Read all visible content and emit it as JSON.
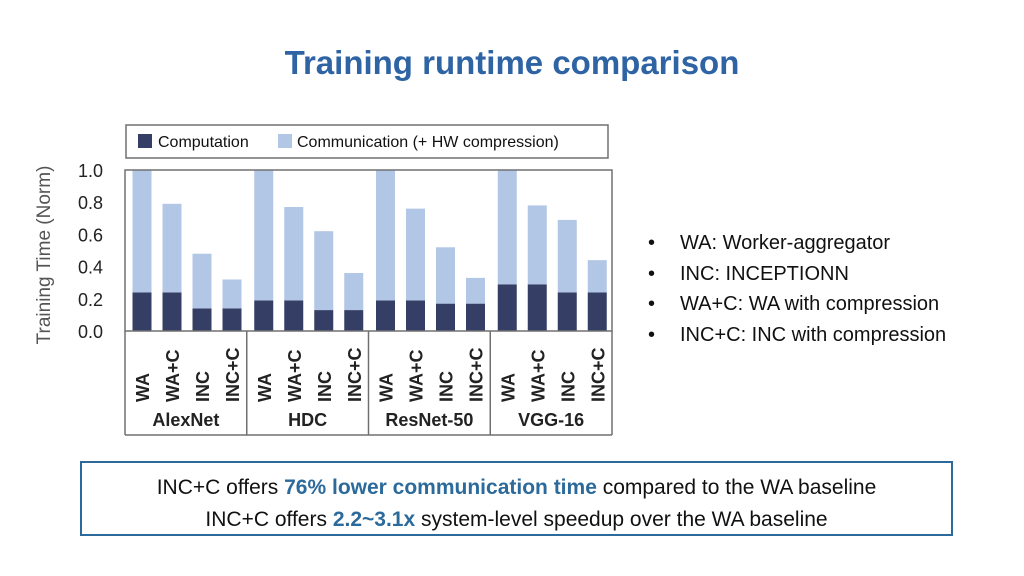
{
  "slide": {
    "title": "Training runtime comparison"
  },
  "bullets": [
    "WA: Worker-aggregator",
    "INC: INCEPTIONN",
    "WA+C: WA with compression",
    "INC+C: INC with compression"
  ],
  "summary": {
    "line1": {
      "pre": "INC+C offers ",
      "highlight": "76% lower communication time",
      "post": " compared to the WA baseline"
    },
    "line2": {
      "pre": "INC+C offers ",
      "highlight": "2.2~3.1x",
      "post": " system-level speedup over the WA baseline"
    }
  },
  "chart_data": {
    "type": "bar",
    "stacked": true,
    "ylabel": "Training Time (Norm)",
    "ylim": [
      0,
      1.0
    ],
    "yticks": [
      "1.0",
      "0.8",
      "0.6",
      "0.4",
      "0.2",
      "0.0"
    ],
    "grid": false,
    "legend_position": "top",
    "groups": [
      {
        "name": "AlexNet",
        "categories": [
          "WA",
          "WA+C",
          "INC",
          "INC+C"
        ]
      },
      {
        "name": "HDC",
        "categories": [
          "WA",
          "WA+C",
          "INC",
          "INC+C"
        ]
      },
      {
        "name": "ResNet-50",
        "categories": [
          "WA",
          "WA+C",
          "INC",
          "INC+C"
        ]
      },
      {
        "name": "VGG-16",
        "categories": [
          "WA",
          "WA+C",
          "INC",
          "INC+C"
        ]
      }
    ],
    "series": [
      {
        "name": "Computation",
        "color": "#353f66",
        "values": [
          0.24,
          0.24,
          0.14,
          0.14,
          0.19,
          0.19,
          0.13,
          0.13,
          0.19,
          0.19,
          0.17,
          0.17,
          0.29,
          0.29,
          0.24,
          0.24
        ]
      },
      {
        "name": "Communication (+ HW compression)",
        "color": "#b2c6e6",
        "values": [
          0.76,
          0.55,
          0.34,
          0.18,
          0.81,
          0.58,
          0.49,
          0.23,
          0.81,
          0.57,
          0.35,
          0.16,
          0.71,
          0.49,
          0.45,
          0.2
        ]
      }
    ]
  }
}
